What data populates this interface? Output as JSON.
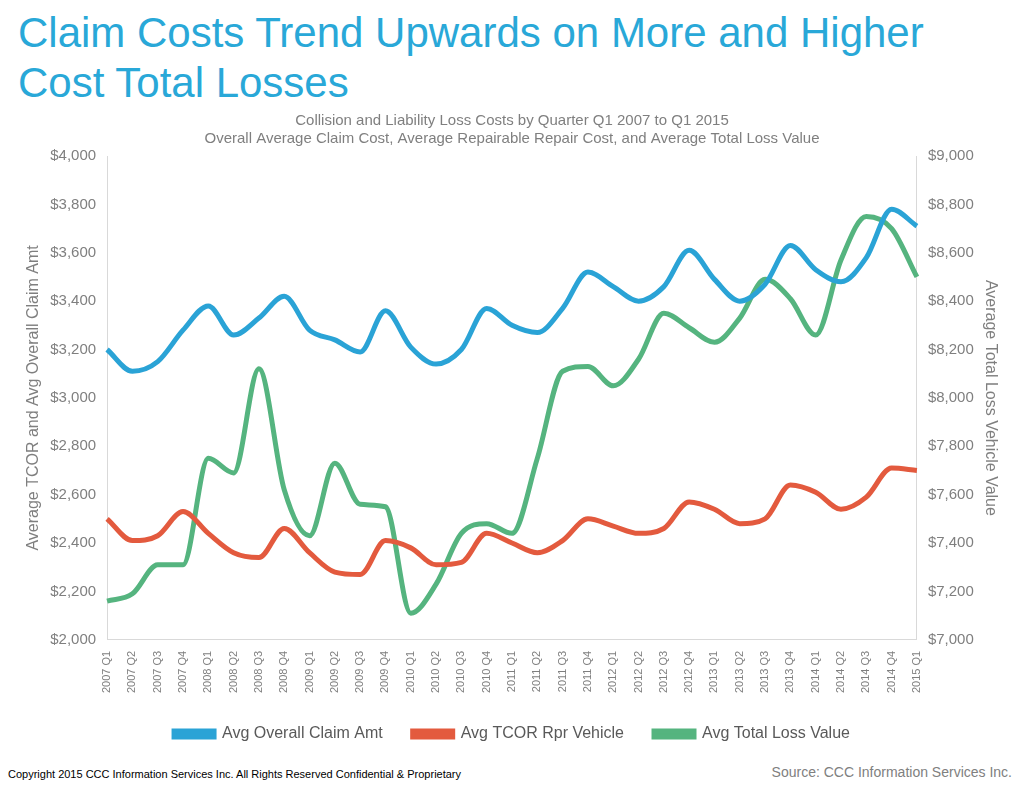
{
  "chart_data": {
    "type": "line",
    "title": "Claim Costs Trend Upwards on More and Higher Cost Total Losses",
    "subtitle": [
      "Collision and Liability Loss Costs by Quarter Q1 2007 to Q1 2015",
      "Overall Average Claim Cost, Average Repairable Repair Cost, and Average Total Loss Value"
    ],
    "y_label": "Average TCOR and Avg Overall Claim Amt",
    "y2_label": "Average Total Loss Vehicle Value",
    "copyright": "Copyright 2015 CCC Information Services Inc.  All Rights Reserved Confidential & Proprietary",
    "source": "Source: CCC Information Services Inc.",
    "categories": [
      "2007 Q1",
      "2007 Q2",
      "2007 Q3",
      "2007 Q4",
      "2008 Q1",
      "2008 Q2",
      "2008 Q3",
      "2008 Q4",
      "2009 Q1",
      "2009 Q2",
      "2009 Q3",
      "2009 Q4",
      "2010 Q1",
      "2010 Q2",
      "2010 Q3",
      "2010 Q4",
      "2011 Q1",
      "2011 Q2",
      "2011 Q3",
      "2011 Q4",
      "2012 Q1",
      "2012 Q2",
      "2012 Q3",
      "2012 Q4",
      "2013 Q1",
      "2013 Q2",
      "2013 Q3",
      "2013 Q4",
      "2014 Q1",
      "2014 Q2",
      "2014 Q3",
      "2014 Q4",
      "2015 Q1"
    ],
    "series": [
      {
        "name": "Avg Overall Claim Amt",
        "color": "#2aa3d6",
        "axis": "y",
        "values": [
          3200,
          3110,
          3150,
          3280,
          3380,
          3260,
          3330,
          3420,
          3280,
          3240,
          3190,
          3360,
          3210,
          3140,
          3200,
          3370,
          3300,
          3270,
          3370,
          3520,
          3460,
          3400,
          3460,
          3610,
          3490,
          3400,
          3470,
          3630,
          3530,
          3480,
          3580,
          3780,
          3710
        ]
      },
      {
        "name": "Avg TCOR Rpr Vehicle",
        "color": "#e35a3e",
        "axis": "y",
        "values": [
          2500,
          2410,
          2430,
          2530,
          2440,
          2360,
          2340,
          2460,
          2360,
          2280,
          2270,
          2410,
          2380,
          2310,
          2320,
          2440,
          2400,
          2360,
          2410,
          2500,
          2470,
          2440,
          2460,
          2570,
          2540,
          2480,
          2500,
          2640,
          2610,
          2540,
          2590,
          2710,
          2700
        ]
      },
      {
        "name": "Avg Total Loss Value",
        "color": "#55b47f",
        "axis": "y2",
        "values": [
          7160,
          7190,
          7310,
          7310,
          7750,
          7690,
          8120,
          7620,
          7430,
          7730,
          7560,
          7550,
          7110,
          7230,
          7440,
          7480,
          7440,
          7750,
          8110,
          8130,
          8050,
          8160,
          8350,
          8290,
          8230,
          8330,
          8490,
          8410,
          8260,
          8570,
          8750,
          8700,
          8500
        ]
      }
    ],
    "ylim": [
      2000,
      4000
    ],
    "yticks": [
      {
        "value": 2000,
        "label": "$2,000"
      },
      {
        "value": 2200,
        "label": "$2,200"
      },
      {
        "value": 2400,
        "label": "$2,400"
      },
      {
        "value": 2600,
        "label": "$2,600"
      },
      {
        "value": 2800,
        "label": "$2,800"
      },
      {
        "value": 3000,
        "label": "$3,000"
      },
      {
        "value": 3200,
        "label": "$3,200"
      },
      {
        "value": 3400,
        "label": "$3,400"
      },
      {
        "value": 3600,
        "label": "$3,600"
      },
      {
        "value": 3800,
        "label": "$3,800"
      },
      {
        "value": 4000,
        "label": "$4,000"
      }
    ],
    "y2lim": [
      7000,
      9000
    ],
    "y2ticks": [
      {
        "value": 7000,
        "label": "$7,000"
      },
      {
        "value": 7200,
        "label": "$7,200"
      },
      {
        "value": 7400,
        "label": "$7,400"
      },
      {
        "value": 7600,
        "label": "$7,600"
      },
      {
        "value": 7800,
        "label": "$7,800"
      },
      {
        "value": 8000,
        "label": "$8,000"
      },
      {
        "value": 8200,
        "label": "$8,200"
      },
      {
        "value": 8400,
        "label": "$8,400"
      },
      {
        "value": 8600,
        "label": "$8,600"
      },
      {
        "value": 8800,
        "label": "$8,800"
      },
      {
        "value": 9000,
        "label": "$9,000"
      }
    ],
    "grid": false,
    "legend": "bottom"
  }
}
